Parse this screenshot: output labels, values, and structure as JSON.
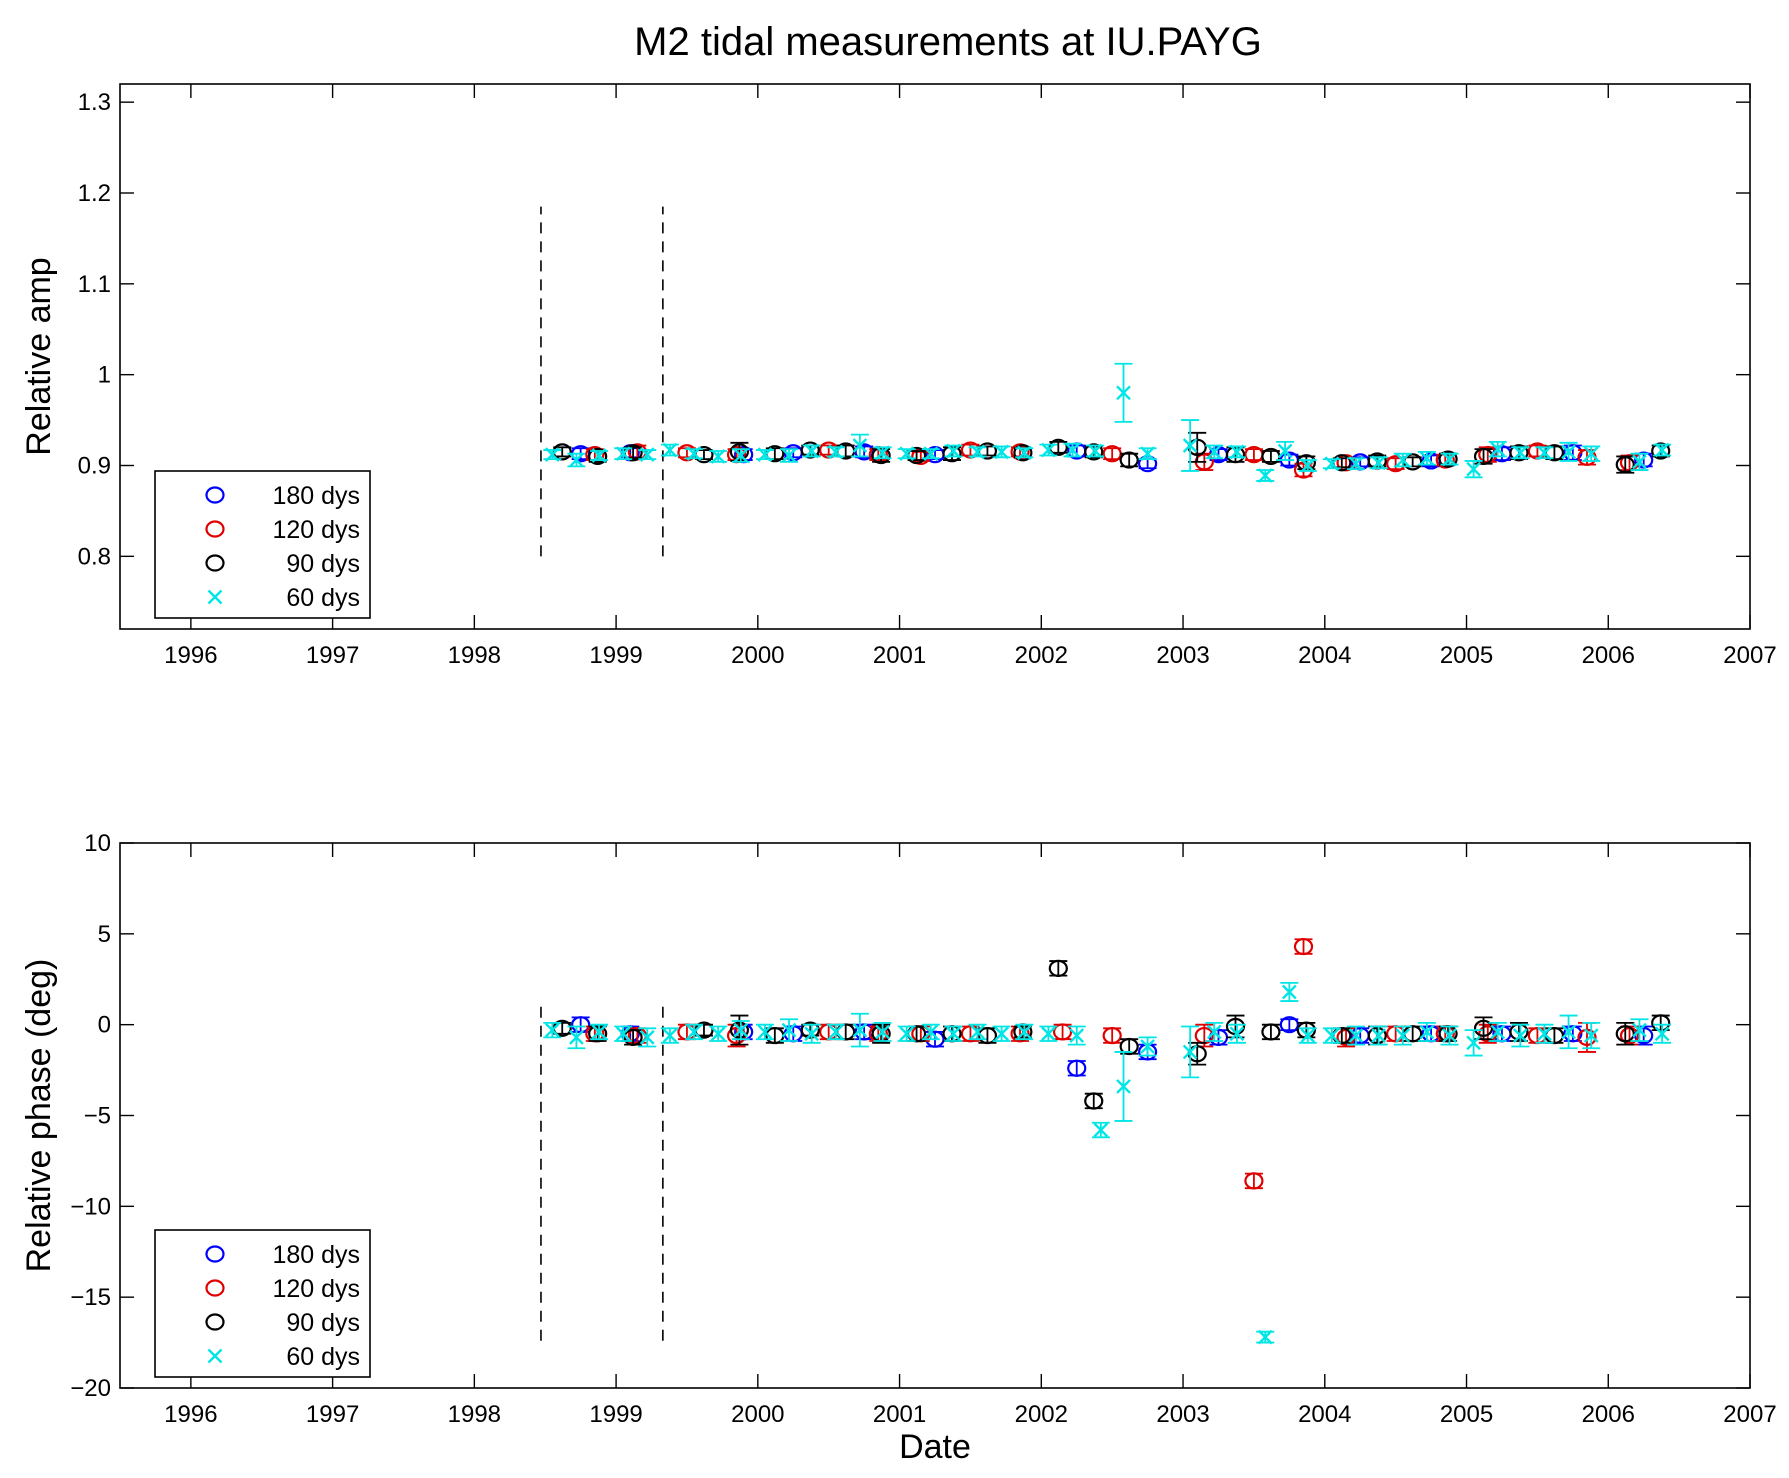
{
  "figure": {
    "title": "M2 tidal measurements at IU.PAYG"
  },
  "chart_data": [
    {
      "type": "scatter",
      "panel": "amplitude",
      "xlabel": "",
      "ylabel": "Relative amp",
      "xlim": [
        1995.5,
        2007
      ],
      "ylim": [
        0.72,
        1.32
      ],
      "xticks": [
        1996,
        1997,
        1998,
        1999,
        2000,
        2001,
        2002,
        2003,
        2004,
        2005,
        2006,
        2007
      ],
      "yticks": [
        0.8,
        0.9,
        1,
        1.1,
        1.2,
        1.3
      ],
      "ytick_labels": [
        "0.8",
        "0.9",
        "1",
        "1.1",
        "1.2",
        "1.3"
      ],
      "vlines": {
        "x": [
          1998.47,
          1999.33
        ],
        "range": [
          0.8,
          1.185
        ],
        "style": "dashed"
      },
      "legend": {
        "position": "bottom-left",
        "entries": [
          "180 dys",
          "120 dys",
          "90 dys",
          "60 dys"
        ]
      },
      "series": [
        {
          "name": "180 dys",
          "marker": "circle",
          "color": "#0000ff",
          "x": [
            1998.75,
            1999.1,
            1999.9,
            2000.25,
            2000.75,
            2001.25,
            2002.25,
            2002.75,
            2003.25,
            2003.75,
            2004.25,
            2004.75,
            2005.25,
            2005.75,
            2006.25
          ],
          "y": [
            0.913,
            0.914,
            0.912,
            0.914,
            0.915,
            0.912,
            0.916,
            0.902,
            0.912,
            0.906,
            0.904,
            0.905,
            0.913,
            0.914,
            0.906
          ],
          "err": [
            0.006,
            0.005,
            0.006,
            0.005,
            0.006,
            0.005,
            0.006,
            0.005,
            0.006,
            0.006,
            0.005,
            0.006,
            0.007,
            0.008,
            0.007
          ]
        },
        {
          "name": "120 dys",
          "marker": "circle",
          "color": "#e00000",
          "x": [
            1998.85,
            1999.15,
            1999.5,
            1999.85,
            2000.5,
            2000.85,
            2001.15,
            2001.5,
            2001.85,
            2002.5,
            2003.15,
            2003.5,
            2003.85,
            2004.15,
            2004.5,
            2004.85,
            2005.15,
            2005.5,
            2005.85,
            2006.15
          ],
          "y": [
            0.912,
            0.915,
            0.914,
            0.912,
            0.917,
            0.912,
            0.91,
            0.917,
            0.915,
            0.913,
            0.904,
            0.912,
            0.895,
            0.903,
            0.902,
            0.906,
            0.912,
            0.916,
            0.909,
            0.903
          ],
          "err": [
            0.006,
            0.007,
            0.005,
            0.006,
            0.005,
            0.006,
            0.005,
            0.006,
            0.005,
            0.006,
            0.009,
            0.006,
            0.007,
            0.005,
            0.006,
            0.006,
            0.008,
            0.006,
            0.008,
            0.008
          ]
        },
        {
          "name": "90 dys",
          "marker": "circle",
          "color": "#000000",
          "x": [
            1998.62,
            1998.87,
            1999.12,
            1999.62,
            1999.87,
            2000.12,
            2000.37,
            2000.62,
            2000.87,
            2001.12,
            2001.37,
            2001.62,
            2001.87,
            2002.12,
            2002.37,
            2002.62,
            2003.1,
            2003.37,
            2003.62,
            2003.87,
            2004.12,
            2004.37,
            2004.62,
            2004.87,
            2005.12,
            2005.37,
            2005.62,
            2006.12,
            2006.37
          ],
          "y": [
            0.915,
            0.91,
            0.914,
            0.912,
            0.915,
            0.913,
            0.917,
            0.916,
            0.911,
            0.911,
            0.913,
            0.916,
            0.914,
            0.92,
            0.915,
            0.906,
            0.92,
            0.912,
            0.91,
            0.903,
            0.903,
            0.905,
            0.904,
            0.907,
            0.91,
            0.914,
            0.914,
            0.901,
            0.916
          ],
          "err": [
            0.005,
            0.006,
            0.006,
            0.005,
            0.01,
            0.006,
            0.005,
            0.006,
            0.007,
            0.005,
            0.007,
            0.005,
            0.005,
            0.006,
            0.006,
            0.007,
            0.016,
            0.008,
            0.006,
            0.007,
            0.005,
            0.006,
            0.005,
            0.006,
            0.008,
            0.007,
            0.007,
            0.009,
            0.006
          ]
        },
        {
          "name": "60 dys",
          "marker": "x",
          "color": "#00e5e5",
          "x": [
            1998.55,
            1998.72,
            1998.88,
            1999.05,
            1999.22,
            1999.38,
            1999.55,
            1999.72,
            1999.88,
            2000.05,
            2000.22,
            2000.38,
            2000.55,
            2000.72,
            2000.88,
            2001.05,
            2001.22,
            2001.38,
            2001.55,
            2001.72,
            2001.88,
            2002.05,
            2002.22,
            2002.38,
            2002.58,
            2002.75,
            2003.05,
            2003.22,
            2003.38,
            2003.58,
            2003.72,
            2003.88,
            2004.05,
            2004.22,
            2004.38,
            2004.55,
            2004.72,
            2004.88,
            2005.05,
            2005.22,
            2005.38,
            2005.55,
            2005.72,
            2005.88,
            2006.22,
            2006.38
          ],
          "y": [
            0.912,
            0.906,
            0.911,
            0.913,
            0.912,
            0.917,
            0.913,
            0.91,
            0.911,
            0.912,
            0.911,
            0.916,
            0.915,
            0.922,
            0.914,
            0.913,
            0.913,
            0.916,
            0.915,
            0.915,
            0.914,
            0.917,
            0.917,
            0.916,
            0.98,
            0.913,
            0.922,
            0.915,
            0.915,
            0.889,
            0.916,
            0.9,
            0.902,
            0.902,
            0.903,
            0.906,
            0.908,
            0.907,
            0.896,
            0.918,
            0.914,
            0.914,
            0.915,
            0.913,
            0.904,
            0.917
          ],
          "err": [
            0.005,
            0.007,
            0.005,
            0.006,
            0.005,
            0.006,
            0.005,
            0.006,
            0.007,
            0.005,
            0.007,
            0.006,
            0.005,
            0.012,
            0.006,
            0.005,
            0.005,
            0.006,
            0.005,
            0.006,
            0.005,
            0.006,
            0.007,
            0.006,
            0.032,
            0.006,
            0.028,
            0.007,
            0.006,
            0.006,
            0.01,
            0.006,
            0.005,
            0.006,
            0.006,
            0.007,
            0.007,
            0.006,
            0.009,
            0.008,
            0.006,
            0.006,
            0.01,
            0.008,
            0.009,
            0.006
          ]
        }
      ]
    },
    {
      "type": "scatter",
      "panel": "phase",
      "xlabel": "Date",
      "ylabel": "Relative phase (deg)",
      "xlim": [
        1995.5,
        2007
      ],
      "ylim": [
        -20,
        10
      ],
      "xticks": [
        1996,
        1997,
        1998,
        1999,
        2000,
        2001,
        2002,
        2003,
        2004,
        2005,
        2006,
        2007
      ],
      "yticks": [
        -20,
        -15,
        -10,
        -5,
        0,
        5,
        10
      ],
      "ytick_labels": [
        "−20",
        "−15",
        "−10",
        "−5",
        "0",
        "5",
        "10"
      ],
      "vlines": {
        "x": [
          1998.47,
          1999.33
        ],
        "range": [
          -17.4,
          1.0
        ],
        "style": "dashed"
      },
      "legend": {
        "position": "bottom-left",
        "entries": [
          "180 dys",
          "120 dys",
          "90 dys",
          "60 dys"
        ]
      },
      "series": [
        {
          "name": "180 dys",
          "marker": "circle",
          "color": "#0000ff",
          "x": [
            1998.75,
            1999.1,
            1999.9,
            2000.25,
            2000.75,
            2001.25,
            2002.25,
            2002.75,
            2003.25,
            2003.75,
            2004.25,
            2004.75,
            2005.25,
            2005.75,
            2006.25
          ],
          "y": [
            0.0,
            -0.5,
            -0.4,
            -0.5,
            -0.4,
            -0.8,
            -2.4,
            -1.5,
            -0.7,
            0.0,
            -0.6,
            -0.5,
            -0.5,
            -0.5,
            -0.6
          ],
          "err": [
            0.4,
            0.4,
            0.4,
            0.4,
            0.4,
            0.4,
            0.4,
            0.4,
            0.4,
            0.3,
            0.4,
            0.4,
            0.4,
            0.4,
            0.5
          ]
        },
        {
          "name": "120 dys",
          "marker": "circle",
          "color": "#e00000",
          "x": [
            1998.85,
            1999.15,
            1999.5,
            1999.85,
            2000.5,
            2000.85,
            2001.15,
            2001.5,
            2001.85,
            2002.15,
            2002.5,
            2003.15,
            2003.5,
            2003.85,
            2004.15,
            2004.5,
            2004.85,
            2005.15,
            2005.5,
            2005.85,
            2006.15
          ],
          "y": [
            -0.5,
            -0.6,
            -0.4,
            -0.6,
            -0.4,
            -0.5,
            -0.5,
            -0.5,
            -0.5,
            -0.4,
            -0.6,
            -0.6,
            -8.6,
            4.3,
            -0.7,
            -0.5,
            -0.5,
            -0.5,
            -0.6,
            -0.7,
            -0.6
          ],
          "err": [
            0.4,
            0.4,
            0.4,
            0.6,
            0.4,
            0.4,
            0.4,
            0.4,
            0.4,
            0.4,
            0.4,
            0.6,
            0.4,
            0.4,
            0.5,
            0.4,
            0.4,
            0.5,
            0.4,
            0.8,
            0.5
          ]
        },
        {
          "name": "90 dys",
          "marker": "circle",
          "color": "#000000",
          "x": [
            1998.62,
            1998.87,
            1999.12,
            1999.62,
            1999.87,
            2000.12,
            2000.37,
            2000.62,
            2000.87,
            2001.12,
            2001.37,
            2001.62,
            2001.87,
            2002.12,
            2002.37,
            2002.62,
            2003.1,
            2003.37,
            2003.62,
            2003.87,
            2004.12,
            2004.37,
            2004.62,
            2004.87,
            2005.12,
            2005.37,
            2005.62,
            2006.12,
            2006.37
          ],
          "y": [
            -0.2,
            -0.5,
            -0.7,
            -0.3,
            -0.3,
            -0.6,
            -0.3,
            -0.4,
            -0.5,
            -0.5,
            -0.5,
            -0.6,
            -0.4,
            3.1,
            -4.2,
            -1.2,
            -1.6,
            -0.1,
            -0.4,
            -0.3,
            -0.6,
            -0.6,
            -0.5,
            -0.5,
            -0.2,
            -0.4,
            -0.6,
            -0.5,
            0.1
          ],
          "err": [
            0.3,
            0.4,
            0.4,
            0.3,
            0.8,
            0.4,
            0.3,
            0.4,
            0.5,
            0.4,
            0.4,
            0.4,
            0.3,
            0.4,
            0.4,
            0.4,
            0.6,
            0.6,
            0.4,
            0.4,
            0.4,
            0.5,
            0.4,
            0.4,
            0.6,
            0.5,
            0.4,
            0.6,
            0.4
          ]
        },
        {
          "name": "60 dys",
          "marker": "x",
          "color": "#00e5e5",
          "x": [
            1998.55,
            1998.72,
            1998.88,
            1999.05,
            1999.22,
            1999.38,
            1999.55,
            1999.72,
            1999.88,
            2000.05,
            2000.22,
            2000.38,
            2000.55,
            2000.72,
            2000.88,
            2001.05,
            2001.22,
            2001.38,
            2001.55,
            2001.72,
            2001.88,
            2002.05,
            2002.25,
            2002.42,
            2002.58,
            2002.75,
            2003.05,
            2003.22,
            2003.38,
            2003.58,
            2003.75,
            2003.88,
            2004.05,
            2004.22,
            2004.38,
            2004.55,
            2004.72,
            2004.88,
            2005.05,
            2005.22,
            2005.38,
            2005.55,
            2005.72,
            2005.88,
            2006.22,
            2006.38
          ],
          "y": [
            -0.3,
            -0.7,
            -0.4,
            -0.5,
            -0.7,
            -0.6,
            -0.4,
            -0.5,
            -0.3,
            -0.4,
            -0.3,
            -0.5,
            -0.4,
            -0.3,
            -0.4,
            -0.5,
            -0.4,
            -0.5,
            -0.4,
            -0.5,
            -0.4,
            -0.5,
            -0.6,
            -5.8,
            -3.4,
            -1.2,
            -1.5,
            -0.4,
            -0.5,
            -17.2,
            1.8,
            -0.6,
            -0.6,
            -0.6,
            -0.6,
            -0.6,
            -0.4,
            -0.6,
            -1.0,
            -0.4,
            -0.6,
            -0.5,
            -0.4,
            -0.6,
            -0.3,
            -0.5
          ],
          "err": [
            0.4,
            0.6,
            0.4,
            0.4,
            0.5,
            0.4,
            0.4,
            0.4,
            0.5,
            0.4,
            0.6,
            0.5,
            0.4,
            0.9,
            0.5,
            0.4,
            0.4,
            0.4,
            0.4,
            0.4,
            0.4,
            0.4,
            0.5,
            0.4,
            1.9,
            0.5,
            1.4,
            0.5,
            0.5,
            0.3,
            0.5,
            0.4,
            0.4,
            0.5,
            0.5,
            0.5,
            0.5,
            0.5,
            0.7,
            0.5,
            0.6,
            0.5,
            0.9,
            0.7,
            0.6,
            0.5
          ]
        }
      ]
    }
  ]
}
